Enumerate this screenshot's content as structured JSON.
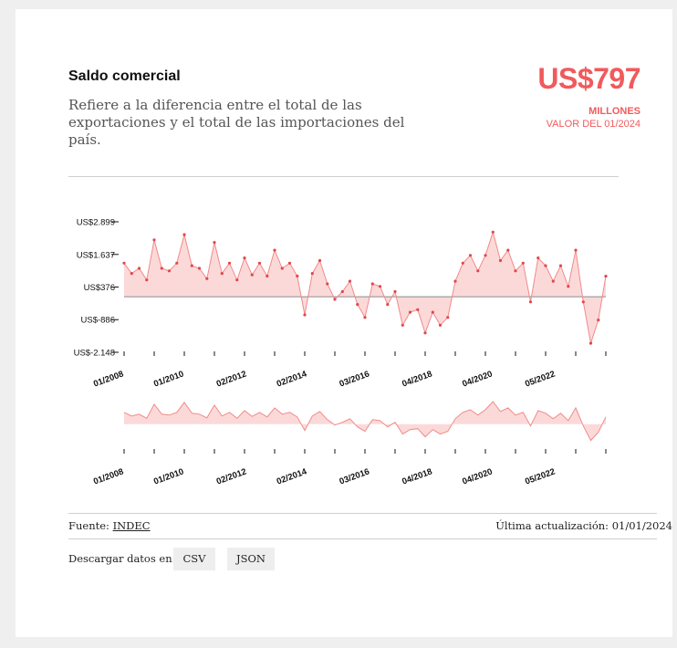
{
  "header": {
    "title": "Saldo comercial",
    "description": "Refiere a la diferencia entre el total de las exportaciones y el total de las importaciones del país.",
    "value": "US$797",
    "unit": "MILLONES",
    "as_of": "VALOR DEL 01/2024"
  },
  "footer": {
    "source_label": "Fuente: ",
    "source_link": "INDEC",
    "updated": "Última actualización: 01/01/2024",
    "download_label": "Descargar datos en:",
    "csv_label": "CSV",
    "json_label": "JSON"
  },
  "colors": {
    "accent": "#f15a5c",
    "area_fill": "#fcd9d9",
    "line": "#f08a8a",
    "zero_line": "#8a8a8a"
  },
  "chart_data": {
    "type": "area",
    "title": "Saldo comercial",
    "ylabel": "",
    "xlabel": "",
    "y_ticks": [
      2899,
      1637,
      376,
      -886,
      -2148
    ],
    "y_tick_labels": [
      "US$2.899",
      "US$1.637",
      "US$376",
      "US$-886",
      "US$-2.148"
    ],
    "ylim": [
      -2148,
      2899
    ],
    "x_tick_labels": [
      "01/2008",
      "01/2010",
      "02/2012",
      "02/2014",
      "03/2016",
      "04/2018",
      "04/2020",
      "05/2022"
    ],
    "x_tick_dates": [
      "2008-01",
      "2010-01",
      "2012-02",
      "2014-02",
      "2016-03",
      "2018-04",
      "2020-04",
      "2022-05"
    ],
    "x_range": [
      "2008-01",
      "2024-01"
    ],
    "baseline": 0,
    "navigator": true,
    "series": [
      {
        "dates": [
          "2008-01",
          "2008-04",
          "2008-07",
          "2008-10",
          "2009-01",
          "2009-04",
          "2009-07",
          "2009-10",
          "2010-01",
          "2010-04",
          "2010-07",
          "2010-10",
          "2011-01",
          "2011-04",
          "2011-07",
          "2011-10",
          "2012-01",
          "2012-04",
          "2012-07",
          "2012-10",
          "2013-01",
          "2013-04",
          "2013-07",
          "2013-10",
          "2014-01",
          "2014-04",
          "2014-07",
          "2014-10",
          "2015-01",
          "2015-04",
          "2015-07",
          "2015-10",
          "2016-01",
          "2016-04",
          "2016-07",
          "2016-10",
          "2017-01",
          "2017-04",
          "2017-07",
          "2017-10",
          "2018-01",
          "2018-04",
          "2018-07",
          "2018-10",
          "2019-01",
          "2019-04",
          "2019-07",
          "2019-10",
          "2020-01",
          "2020-04",
          "2020-07",
          "2020-10",
          "2021-01",
          "2021-04",
          "2021-07",
          "2021-10",
          "2022-01",
          "2022-04",
          "2022-07",
          "2022-10",
          "2023-01",
          "2023-04",
          "2023-07",
          "2023-10",
          "2024-01"
        ],
        "values": [
          1300,
          900,
          1100,
          650,
          2200,
          1100,
          1000,
          1300,
          2400,
          1200,
          1100,
          700,
          2100,
          900,
          1300,
          650,
          1500,
          850,
          1300,
          800,
          1800,
          1100,
          1300,
          800,
          -700,
          900,
          1400,
          500,
          -100,
          200,
          600,
          -300,
          -800,
          500,
          400,
          -300,
          200,
          -1100,
          -600,
          -500,
          -1400,
          -600,
          -1100,
          -800,
          600,
          1300,
          1600,
          1000,
          1600,
          2500,
          1400,
          1800,
          1000,
          1300,
          -200,
          1500,
          1200,
          600,
          1200,
          400,
          1800,
          -200,
          -1800,
          -900,
          797
        ]
      }
    ]
  }
}
